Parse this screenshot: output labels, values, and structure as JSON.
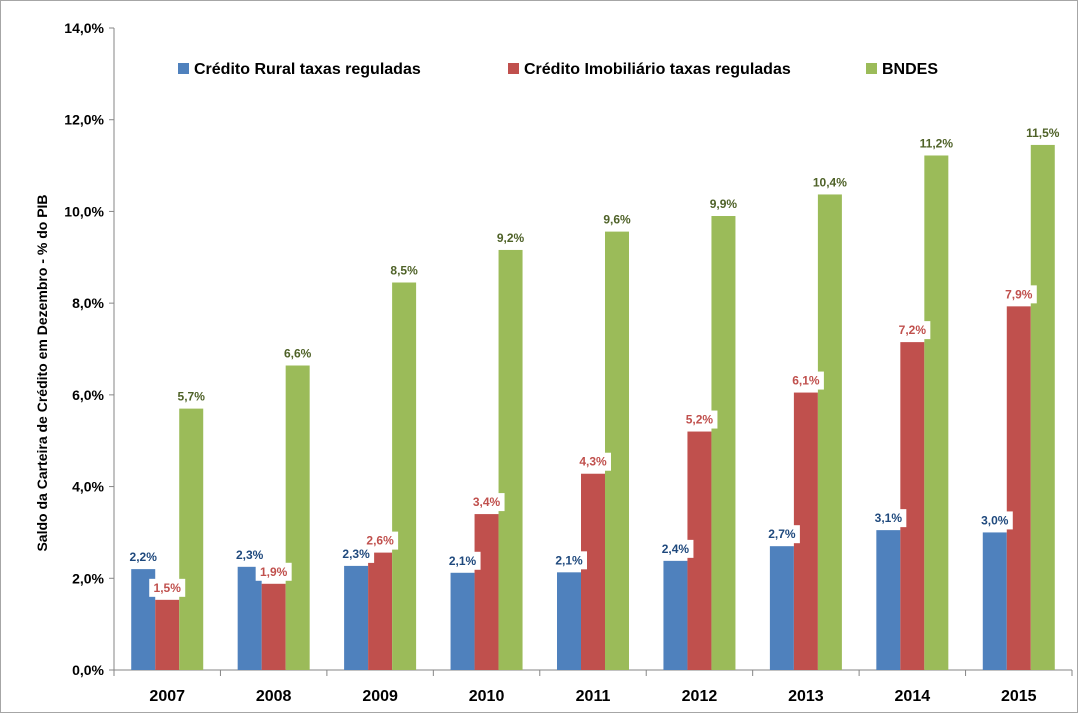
{
  "chart_data": {
    "type": "bar",
    "title": "",
    "xlabel": "",
    "ylabel": "Saldo da Carteira de Crédito em Dezembro - % do PIB",
    "ylim": [
      0,
      14
    ],
    "ytick_values": [
      0,
      2,
      4,
      6,
      8,
      10,
      12,
      14
    ],
    "ytick_labels": [
      "0,0%",
      "2,0%",
      "4,0%",
      "6,0%",
      "8,0%",
      "10,0%",
      "12,0%",
      "14,0%"
    ],
    "categories": [
      "2007",
      "2008",
      "2009",
      "2010",
      "2011",
      "2012",
      "2013",
      "2014",
      "2015"
    ],
    "grid": false,
    "legend_position": "top",
    "series": [
      {
        "name": "Crédito Rural taxas reguladas",
        "color": "#4f81bd",
        "label_color": "#1f497d",
        "values": [
          2.2,
          2.25,
          2.27,
          2.12,
          2.13,
          2.38,
          2.7,
          3.05,
          3.0
        ],
        "labels": [
          "2,2%",
          "2,3%",
          "2,3%",
          "2,1%",
          "2,1%",
          "2,4%",
          "2,7%",
          "3,1%",
          "3,0%"
        ]
      },
      {
        "name": "Crédito Imobiliário taxas reguladas",
        "color": "#c0504d",
        "label_color": "#c0504d",
        "values": [
          1.53,
          1.88,
          2.56,
          3.4,
          4.28,
          5.2,
          6.05,
          7.15,
          7.93
        ],
        "labels": [
          "1,5%",
          "1,9%",
          "2,6%",
          "3,4%",
          "4,3%",
          "5,2%",
          "6,1%",
          "7,2%",
          "7,9%"
        ]
      },
      {
        "name": "BNDES",
        "color": "#9bbb59",
        "label_color": "#4f6228",
        "values": [
          5.7,
          6.64,
          8.45,
          9.16,
          9.56,
          9.9,
          10.37,
          11.22,
          11.45
        ],
        "labels": [
          "5,7%",
          "6,6%",
          "8,5%",
          "9,2%",
          "9,6%",
          "9,9%",
          "10,4%",
          "11,2%",
          "11,5%"
        ]
      }
    ]
  }
}
